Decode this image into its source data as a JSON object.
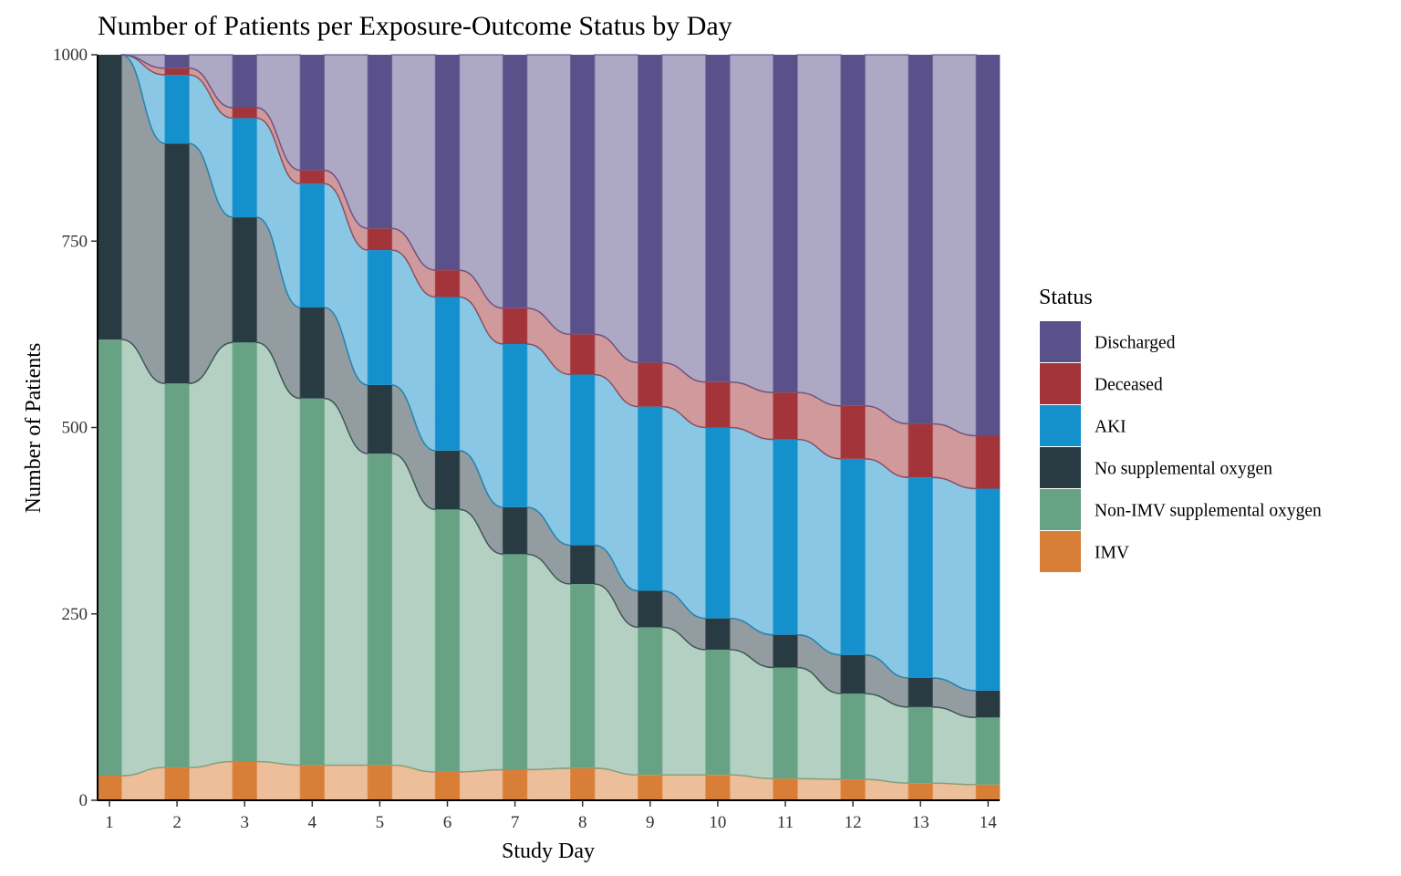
{
  "chart_data": {
    "type": "alluvial",
    "title": "Number of Patients per Exposure-Outcome Status by Day",
    "xlabel": "Study Day",
    "ylabel": "Number of Patients",
    "ylim": [
      0,
      1000
    ],
    "yticks": [
      0,
      250,
      500,
      750,
      1000
    ],
    "grid": false,
    "legend": {
      "title": "Status",
      "position": "right"
    },
    "days": [
      1,
      2,
      3,
      4,
      5,
      6,
      7,
      8,
      9,
      10,
      11,
      12,
      13,
      14
    ],
    "series": [
      {
        "name": "IMV",
        "color": "#D97E36",
        "values": [
          33,
          44,
          52,
          47,
          47,
          38,
          41,
          43,
          34,
          34,
          29,
          28,
          23,
          21
        ]
      },
      {
        "name": "Non-IMV supplemental oxygen",
        "color": "#67A285",
        "values": [
          585,
          515,
          562,
          492,
          418,
          352,
          289,
          247,
          198,
          168,
          149,
          115,
          102,
          90
        ]
      },
      {
        "name": "No supplemental oxygen",
        "color": "#283A42",
        "values": [
          382,
          322,
          168,
          122,
          92,
          79,
          63,
          52,
          49,
          42,
          44,
          52,
          39,
          36
        ]
      },
      {
        "name": "AKI",
        "color": "#1490CC",
        "values": [
          0,
          92,
          133,
          166,
          181,
          206,
          219,
          229,
          247,
          256,
          262,
          263,
          269,
          271
        ]
      },
      {
        "name": "Deceased",
        "color": "#A2343A",
        "values": [
          0,
          9,
          14,
          18,
          29,
          36,
          48,
          54,
          59,
          61,
          63,
          71,
          72,
          71
        ]
      },
      {
        "name": "Discharged",
        "color": "#5B518A",
        "values": [
          0,
          18,
          71,
          155,
          233,
          289,
          340,
          375,
          413,
          439,
          453,
          471,
          495,
          511
        ]
      }
    ],
    "legend_order": [
      "Discharged",
      "Deceased",
      "AKI",
      "No supplemental oxygen",
      "Non-IMV supplemental oxygen",
      "IMV"
    ]
  }
}
